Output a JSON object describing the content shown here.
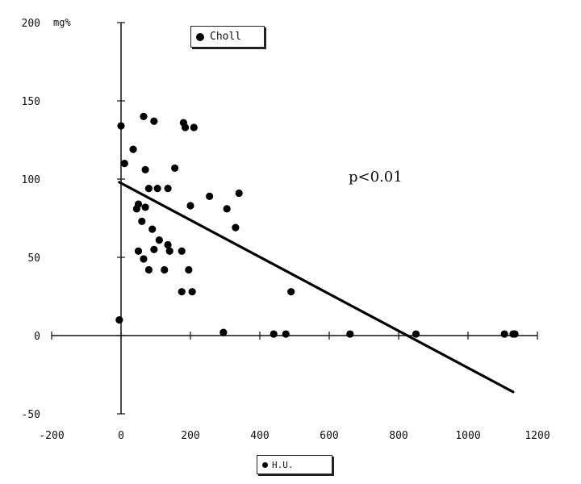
{
  "chart_data": {
    "type": "scatter",
    "xlim": [
      -200,
      1200
    ],
    "ylim": [
      -50,
      200
    ],
    "x_ticks": [
      -200,
      0,
      200,
      400,
      600,
      800,
      1000,
      1200
    ],
    "y_ticks": [
      -50,
      0,
      50,
      100,
      150,
      200
    ],
    "y_unit": "mg%",
    "legend_series": "Choll",
    "legend_x": "H.U.",
    "annotation": "p<0.01",
    "grid": false,
    "trendline": {
      "x": [
        -5,
        1130
      ],
      "y": [
        98,
        -36
      ]
    },
    "points": [
      {
        "x": -5,
        "y": 10
      },
      {
        "x": 0,
        "y": 134
      },
      {
        "x": 10,
        "y": 110
      },
      {
        "x": 35,
        "y": 119
      },
      {
        "x": 45,
        "y": 81
      },
      {
        "x": 50,
        "y": 84
      },
      {
        "x": 50,
        "y": 54
      },
      {
        "x": 60,
        "y": 73
      },
      {
        "x": 65,
        "y": 140
      },
      {
        "x": 65,
        "y": 49
      },
      {
        "x": 70,
        "y": 106
      },
      {
        "x": 70,
        "y": 82
      },
      {
        "x": 80,
        "y": 94
      },
      {
        "x": 80,
        "y": 42
      },
      {
        "x": 90,
        "y": 68
      },
      {
        "x": 95,
        "y": 137
      },
      {
        "x": 95,
        "y": 55
      },
      {
        "x": 105,
        "y": 94
      },
      {
        "x": 110,
        "y": 61
      },
      {
        "x": 125,
        "y": 42
      },
      {
        "x": 135,
        "y": 94
      },
      {
        "x": 135,
        "y": 58
      },
      {
        "x": 140,
        "y": 54
      },
      {
        "x": 155,
        "y": 107
      },
      {
        "x": 175,
        "y": 54
      },
      {
        "x": 175,
        "y": 28
      },
      {
        "x": 180,
        "y": 136
      },
      {
        "x": 185,
        "y": 133
      },
      {
        "x": 195,
        "y": 42
      },
      {
        "x": 200,
        "y": 83
      },
      {
        "x": 205,
        "y": 28
      },
      {
        "x": 210,
        "y": 133
      },
      {
        "x": 255,
        "y": 89
      },
      {
        "x": 295,
        "y": 2
      },
      {
        "x": 305,
        "y": 81
      },
      {
        "x": 330,
        "y": 69
      },
      {
        "x": 340,
        "y": 91
      },
      {
        "x": 440,
        "y": 1
      },
      {
        "x": 475,
        "y": 1
      },
      {
        "x": 490,
        "y": 28
      },
      {
        "x": 660,
        "y": 1
      },
      {
        "x": 850,
        "y": 1
      },
      {
        "x": 1105,
        "y": 1
      },
      {
        "x": 1130,
        "y": 1
      },
      {
        "x": 1135,
        "y": 1
      }
    ]
  }
}
